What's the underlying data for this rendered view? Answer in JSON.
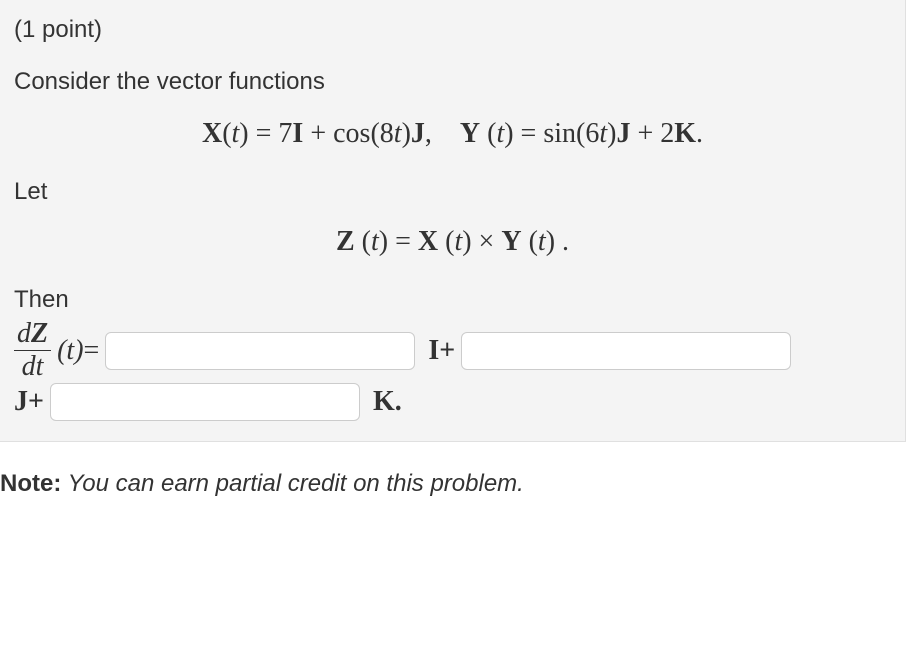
{
  "header": {
    "points_label": "(1 point)"
  },
  "intro_text": "Consider the vector functions",
  "eq1_html": "<b>X</b>(<i>t</i>) = 7<b>I</b> + cos(8<i>t</i>)<b>J</b>,&nbsp;&nbsp;&nbsp;&nbsp;<b>Y</b> (<i>t</i>) = sin(6<i>t</i>)<b>J</b> + 2<b>K</b>.",
  "let_text": "Let",
  "eq2_html": "<b>Z</b> (<i>t</i>) = <b>X</b> (<i>t</i>) × <b>Y</b> (<i>t</i>) .",
  "then_text": "Then",
  "answer": {
    "frac_num": "d",
    "frac_num_bold": "Z",
    "frac_den": "dt",
    "t_eq": "(t)=",
    "I_plus": "I+",
    "J_plus": "J+",
    "K_dot": "K.",
    "input_I": "",
    "input_J": "",
    "input_K": ""
  },
  "note": {
    "label": "Note:",
    "body": " You can earn partial credit on this problem."
  }
}
